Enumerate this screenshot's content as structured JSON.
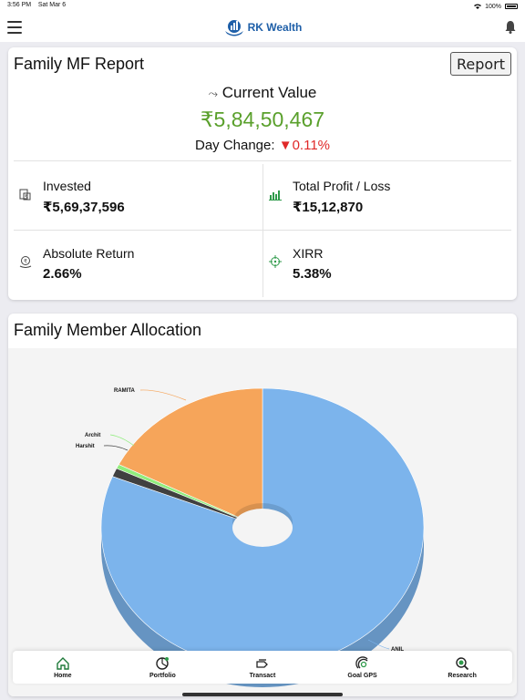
{
  "status_bar": {
    "time": "3:56 PM",
    "date": "Sat Mar 6",
    "battery": "100%"
  },
  "app": {
    "name": "RK Wealth",
    "brand_color": "#1e5fa8"
  },
  "report": {
    "title": "Family MF Report",
    "report_button": "Report",
    "current_value_label": "Current Value",
    "current_value": "₹5,84,50,467",
    "day_change_label": "Day Change:",
    "day_change_value": "0.11%",
    "day_change_direction": "down",
    "stats": {
      "invested_label": "Invested",
      "invested_value": "₹5,69,37,596",
      "profit_label": "Total Profit / Loss",
      "profit_value": "₹15,12,870",
      "abs_return_label": "Absolute Return",
      "abs_return_value": "2.66%",
      "xirr_label": "XIRR",
      "xirr_value": "5.38%"
    },
    "colors": {
      "positive": "#5aa02c",
      "negative": "#e02828"
    }
  },
  "allocation": {
    "title": "Family Member Allocation",
    "labels": {
      "ramita": "RAMITA",
      "archit": "Archit",
      "harshit": "Harshit",
      "anil": "ANIL"
    }
  },
  "chart_data": {
    "type": "pie",
    "style": "3d-donut",
    "series": [
      {
        "name": "ANIL",
        "share": 0.81,
        "color": "#7cb4ec"
      },
      {
        "name": "Harshit",
        "share": 0.01,
        "color": "#404040"
      },
      {
        "name": "Archit",
        "share": 0.005,
        "color": "#90ed7d"
      },
      {
        "name": "RAMITA",
        "share": 0.175,
        "color": "#f6a55a"
      }
    ]
  },
  "tabbar": {
    "items": [
      {
        "label": "Home",
        "icon": "home-icon"
      },
      {
        "label": "Portfolio",
        "icon": "portfolio-icon"
      },
      {
        "label": "Transact",
        "icon": "transact-icon"
      },
      {
        "label": "Goal GPS",
        "icon": "goal-gps-icon"
      },
      {
        "label": "Research",
        "icon": "research-icon"
      }
    ]
  }
}
